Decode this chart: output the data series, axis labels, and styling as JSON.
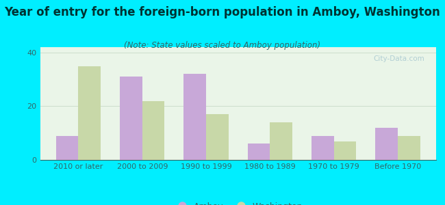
{
  "title": "Year of entry for the foreign-born population in Amboy, Washington",
  "subtitle": "(Note: State values scaled to Amboy population)",
  "categories": [
    "2010 or later",
    "2000 to 2009",
    "1990 to 1999",
    "1980 to 1989",
    "1970 to 1979",
    "Before 1970"
  ],
  "amboy_values": [
    9,
    31,
    32,
    6,
    9,
    12
  ],
  "washington_values": [
    35,
    22,
    17,
    14,
    7,
    9
  ],
  "amboy_color": "#c8a8d8",
  "washington_color": "#c8d8a8",
  "background_outer": "#00eeff",
  "background_inner": "#eaf5e8",
  "ylim": [
    0,
    42
  ],
  "yticks": [
    0,
    20,
    40
  ],
  "bar_width": 0.35,
  "title_fontsize": 12,
  "subtitle_fontsize": 8.5,
  "tick_fontsize": 8,
  "legend_fontsize": 9,
  "grid_color": "#ccddcc",
  "watermark_text": "City-Data.com",
  "watermark_color": "#a8c8d0",
  "legend_amboy": "Amboy",
  "legend_washington": "Washington",
  "title_color": "#003333",
  "subtitle_color": "#336666",
  "tick_color": "#336666"
}
